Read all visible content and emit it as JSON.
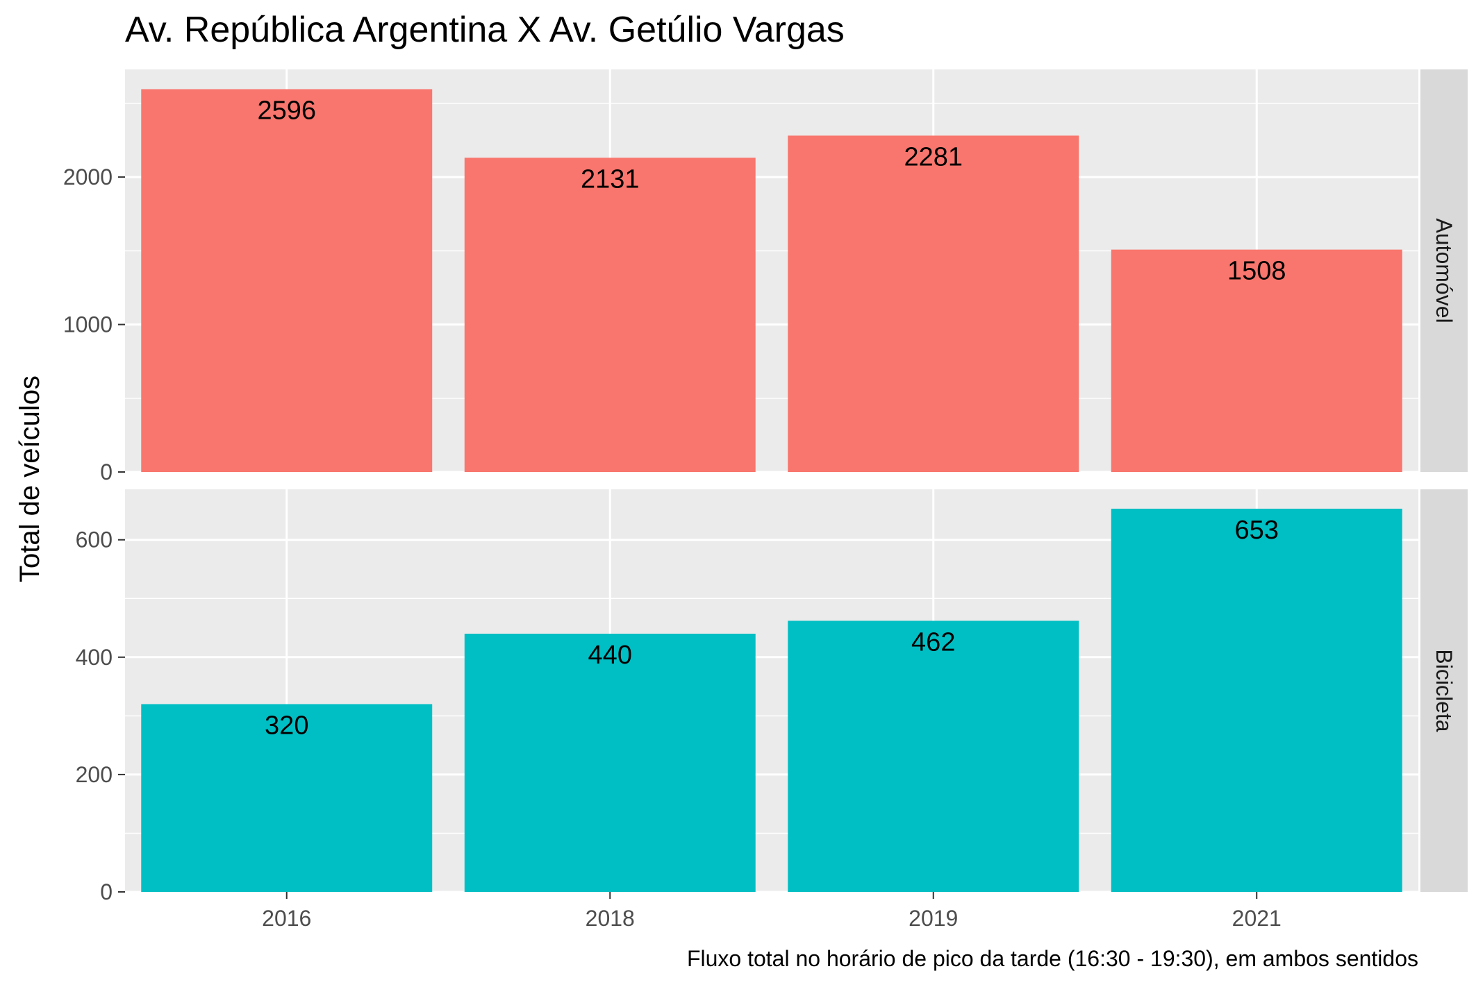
{
  "chart_data": {
    "type": "bar",
    "title": "Av. República Argentina X Av. Getúlio Vargas",
    "caption": "Fluxo total no horário de pico da tarde (16:30 - 19:30), em ambos sentidos",
    "xlabel": "",
    "ylabel": "Total de veículos",
    "categories": [
      "2016",
      "2018",
      "2019",
      "2021"
    ],
    "grid": true,
    "legend": "none",
    "facets": [
      {
        "name": "Automóvel",
        "color": "#F8766D",
        "values": [
          2596,
          2131,
          2281,
          1508
        ],
        "value_labels": [
          "2596",
          "2131",
          "2281",
          "1508"
        ],
        "ylim": [
          0,
          2730
        ],
        "yticks": [
          0,
          1000,
          2000
        ],
        "ytick_labels": [
          "0",
          "1000",
          "2000"
        ]
      },
      {
        "name": "Bicicleta",
        "color": "#00BFC4",
        "values": [
          320,
          440,
          462,
          653
        ],
        "value_labels": [
          "320",
          "440",
          "462",
          "653"
        ],
        "ylim": [
          0,
          686
        ],
        "yticks": [
          0,
          200,
          400,
          600
        ],
        "ytick_labels": [
          "0",
          "200",
          "400",
          "600"
        ]
      }
    ]
  }
}
